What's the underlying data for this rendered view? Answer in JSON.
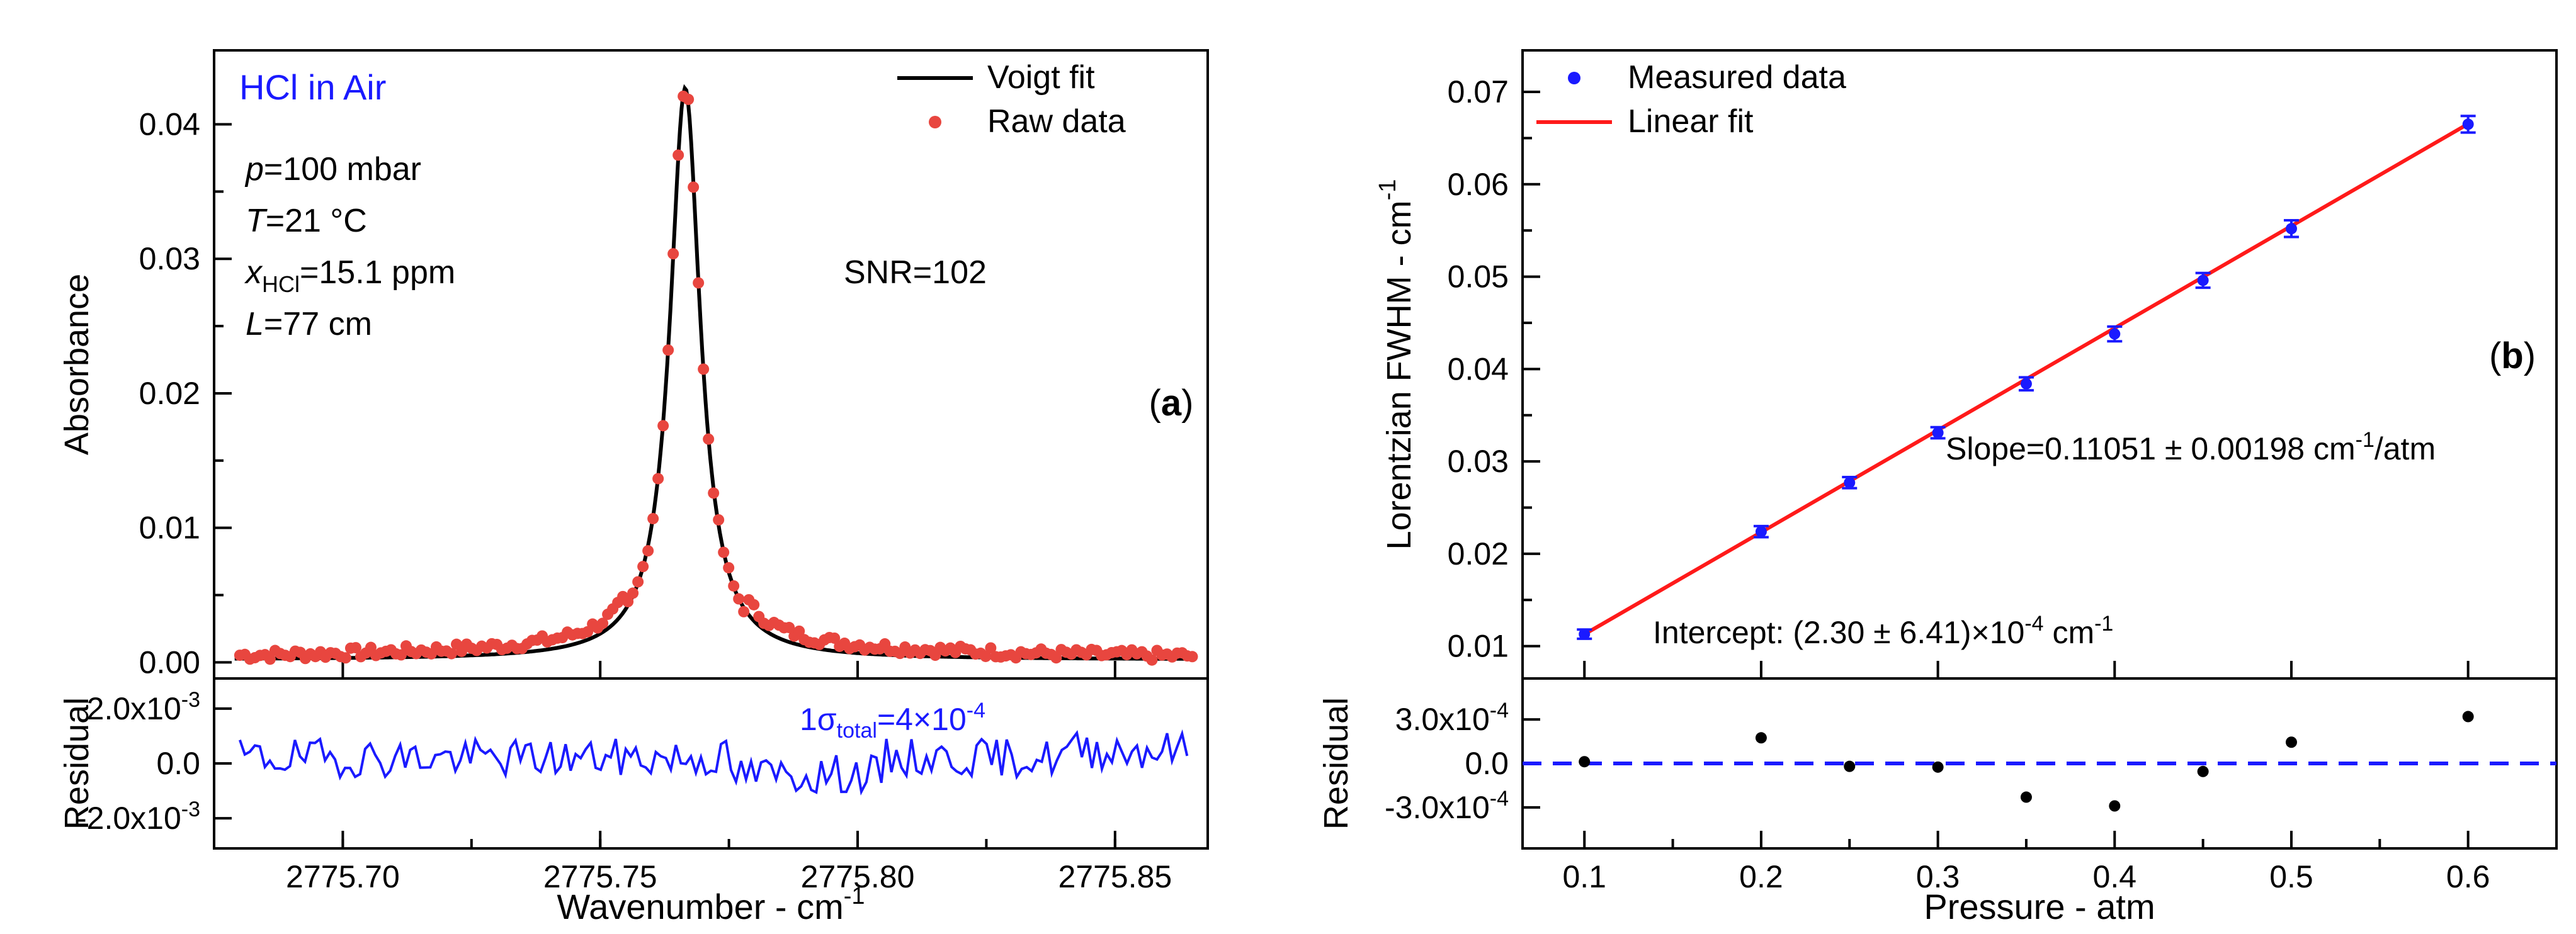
{
  "chart_data": [
    {
      "id": "a",
      "type": "line",
      "panel_label": "a",
      "main": {
        "ylabel": "Absorbance",
        "xlim": [
          2775.675,
          2775.868
        ],
        "ylim": [
          -0.0012,
          0.0455
        ],
        "yticks": [
          0.0,
          0.01,
          0.02,
          0.03,
          0.04
        ],
        "ytick_labels": [
          "0.00",
          "0.01",
          "0.02",
          "0.03",
          "0.04"
        ],
        "gas_label": "HCl in Air",
        "conditions": [
          {
            "sym": "p",
            "value": "=100 mbar"
          },
          {
            "sym": "T",
            "value": "=21 °C"
          },
          {
            "sym": "x",
            "sub": "HCl",
            "value": "=15.1 ppm"
          },
          {
            "sym": "L",
            "value": "=77 cm"
          }
        ],
        "snr_text": "SNR=102",
        "legend": [
          {
            "name": "Voigt fit",
            "color": "#000000",
            "style": "line"
          },
          {
            "name": "Raw data",
            "color": "#e8463f",
            "style": "marker"
          }
        ],
        "voigt": {
          "center": 2775.7665,
          "peak": 0.0425,
          "hwhm": 0.0036,
          "baseline": 0.0002
        },
        "raw": {
          "x_start": 2775.68,
          "x_end": 2775.865,
          "n_points": 190
        }
      },
      "residual": {
        "ylabel": "Residual",
        "ylim": [
          -0.0031,
          0.0031
        ],
        "ytick_values": [
          0.002,
          0.0,
          -0.002
        ],
        "ytick_labels": [
          {
            "mantissa": "2.0x10",
            "exp": "-3"
          },
          {
            "mantissa": "0.0",
            "exp": ""
          },
          {
            "mantissa": "-2.0x10",
            "exp": "-3"
          }
        ],
        "sigma_label": {
          "pre": "1σ",
          "sub": "total",
          "post": "=4×10",
          "exp": "-4"
        },
        "color": "#1a1aff",
        "n_points": 190
      },
      "xlabel": {
        "text": "Wavenumber - cm",
        "exp": "-1"
      },
      "xticks": [
        2775.7,
        2775.75,
        2775.8,
        2775.85
      ],
      "xtick_labels": [
        "2775.70",
        "2775.75",
        "2775.80",
        "2775.85"
      ]
    },
    {
      "id": "b",
      "type": "scatter",
      "panel_label": "b",
      "main": {
        "ylabel": {
          "text": "Lorentzian FWHM - cm",
          "exp": "-1"
        },
        "xlim": [
          0.065,
          0.65
        ],
        "ylim": [
          0.0065,
          0.0745
        ],
        "yticks": [
          0.01,
          0.02,
          0.03,
          0.04,
          0.05,
          0.06,
          0.07
        ],
        "ytick_labels": [
          "0.01",
          "0.02",
          "0.03",
          "0.04",
          "0.05",
          "0.06",
          "0.07"
        ],
        "x": [
          0.1,
          0.2,
          0.25,
          0.3,
          0.35,
          0.4,
          0.45,
          0.5,
          0.6
        ],
        "y": [
          0.0113,
          0.0224,
          0.0277,
          0.0331,
          0.0384,
          0.0438,
          0.0496,
          0.0552,
          0.0665
        ],
        "yerr": [
          0.0005,
          0.0006,
          0.0006,
          0.0006,
          0.0007,
          0.0008,
          0.0008,
          0.0009,
          0.0009
        ],
        "fit": {
          "slope": 0.11051,
          "intercept": 0.00023
        },
        "legend": [
          {
            "name": "Measured data",
            "color": "#1a1aff",
            "style": "marker"
          },
          {
            "name": "Linear fit",
            "color": "#ff1a1a",
            "style": "line"
          }
        ],
        "slope_text": {
          "pre": "Slope=0.11051 ± 0.00198 cm",
          "exp": "-1",
          "post": "/atm"
        },
        "intercept_text": {
          "pre": "Intercept: (2.30 ± 6.41)×10",
          "exp": "-4",
          "post": " cm",
          "exp2": "-1"
        }
      },
      "residual": {
        "ylabel": "Residual",
        "ylim": [
          -0.00058,
          0.00058
        ],
        "ytick_values": [
          0.0003,
          0.0,
          -0.0003
        ],
        "ytick_labels": [
          {
            "mantissa": "3.0x10",
            "exp": "-4"
          },
          {
            "mantissa": "0.0",
            "exp": ""
          },
          {
            "mantissa": "-3.0x10",
            "exp": "-4"
          }
        ],
        "x": [
          0.1,
          0.2,
          0.25,
          0.3,
          0.35,
          0.4,
          0.45,
          0.5,
          0.6
        ],
        "values": [
          1.2e-05,
          0.000175,
          -2e-05,
          -2.5e-05,
          -0.00023,
          -0.00029,
          -5.5e-05,
          0.000145,
          0.00032
        ],
        "zero_line_color": "#1a1aff"
      },
      "xlabel": {
        "text": "Pressure - atm",
        "exp": ""
      },
      "xticks": [
        0.1,
        0.2,
        0.3,
        0.4,
        0.5,
        0.6
      ],
      "xtick_labels": [
        "0.1",
        "0.2",
        "0.3",
        "0.4",
        "0.5",
        "0.6"
      ]
    }
  ]
}
